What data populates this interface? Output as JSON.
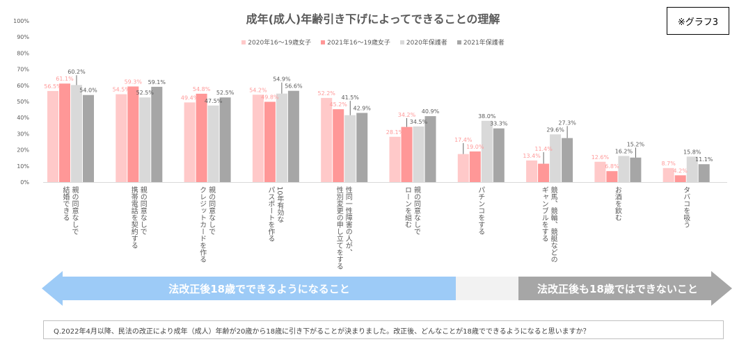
{
  "badge": "※グラフ3",
  "chart_data": {
    "type": "bar",
    "title": "成年(成人)年齢引き下げによってできることの理解",
    "ylim": [
      0,
      100
    ],
    "yticks": [
      "0%",
      "10%",
      "20%",
      "30%",
      "40%",
      "50%",
      "60%",
      "70%",
      "80%",
      "90%",
      "100%"
    ],
    "legend_position": "top",
    "grid": false,
    "categories": [
      [
        "親の同意なしで",
        "結婚できる"
      ],
      [
        "親の同意なしで",
        "携帯電話を契約する"
      ],
      [
        "親の同意なしで",
        "クレジットカードを作る"
      ],
      [
        "10年有効な",
        "パスポートを作る"
      ],
      [
        "性同一性障害の人が、",
        "性別変更の申し立てをする"
      ],
      [
        "親の同意なしで",
        "ローンを組む"
      ],
      [
        "パチンコをする"
      ],
      [
        "競馬、競輪、競艇などの",
        "ギャンブルをする"
      ],
      [
        "お酒を飲む"
      ],
      [
        "タバコを吸う"
      ]
    ],
    "series": [
      {
        "name": "2020年16～19歳女子",
        "color": "#ffc9c9",
        "label_color": "#ff9999",
        "values": [
          56.5,
          54.5,
          49.4,
          54.2,
          52.2,
          28.1,
          17.4,
          13.4,
          12.6,
          8.7
        ]
      },
      {
        "name": "2021年16～19歳女子",
        "color": "#ff9797",
        "label_color": "#ff9999",
        "values": [
          61.1,
          59.3,
          54.8,
          49.8,
          45.2,
          34.2,
          19.0,
          11.4,
          6.8,
          4.2
        ]
      },
      {
        "name": "2020年保護者",
        "color": "#d9d9d9",
        "label_color": "#595959",
        "values": [
          60.2,
          52.5,
          47.5,
          54.9,
          41.5,
          34.5,
          38.0,
          29.6,
          16.2,
          15.8
        ]
      },
      {
        "name": "2021年保護者",
        "color": "#a6a6a6",
        "label_color": "#595959",
        "values": [
          54.0,
          59.1,
          52.5,
          56.6,
          42.9,
          40.9,
          33.3,
          27.3,
          15.2,
          11.1
        ]
      }
    ]
  },
  "arrows": {
    "left": "法改正後18歳でできるようになること",
    "right": "法改正後も18歳ではできないこと",
    "left_color": "#9dcbf7",
    "right_color": "#a6a6a6"
  },
  "question": "Q.2022年4月以降、民法の改正により成年（成人）年齢が20歳から18歳に引き下がることが決まりました。改正後、どんなことが18歳でできるようになると思いますか？"
}
